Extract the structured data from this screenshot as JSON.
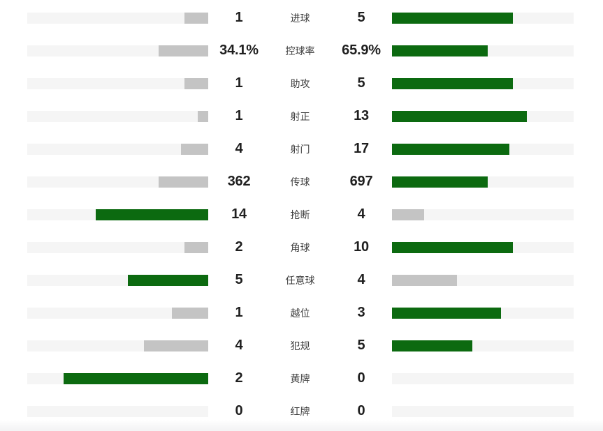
{
  "chart_data": {
    "type": "bar",
    "orientation": "horizontal",
    "layout": "mirrored-paired-comparison",
    "title": "",
    "legend": "none",
    "axis": "none",
    "grid": false,
    "bar_scale_note": "each fill width = 80% of track × value / (left value + right value); bars grow outward from center",
    "categories": [
      "进球",
      "控球率",
      "助攻",
      "射正",
      "射门",
      "传球",
      "抢断",
      "角球",
      "任意球",
      "越位",
      "犯规",
      "黄牌",
      "红牌"
    ],
    "series": [
      {
        "name": "left-team",
        "side": "left",
        "values": [
          1,
          34.1,
          1,
          1,
          4,
          362,
          14,
          2,
          5,
          1,
          4,
          2,
          0
        ]
      },
      {
        "name": "right-team",
        "side": "right",
        "values": [
          5,
          65.9,
          5,
          13,
          17,
          697,
          4,
          10,
          4,
          3,
          5,
          0,
          0
        ]
      }
    ],
    "rows": [
      {
        "label": "进球",
        "left": {
          "display": "1",
          "value": 1,
          "pct": 13.3,
          "color": "gray"
        },
        "right": {
          "display": "5",
          "value": 5,
          "pct": 66.7,
          "color": "green"
        }
      },
      {
        "label": "控球率",
        "left": {
          "display": "34.1%",
          "value": 34.1,
          "pct": 27.3,
          "color": "gray"
        },
        "right": {
          "display": "65.9%",
          "value": 65.9,
          "pct": 52.7,
          "color": "green"
        }
      },
      {
        "label": "助攻",
        "left": {
          "display": "1",
          "value": 1,
          "pct": 13.3,
          "color": "gray"
        },
        "right": {
          "display": "5",
          "value": 5,
          "pct": 66.7,
          "color": "green"
        }
      },
      {
        "label": "射正",
        "left": {
          "display": "1",
          "value": 1,
          "pct": 5.7,
          "color": "gray"
        },
        "right": {
          "display": "13",
          "value": 13,
          "pct": 74.3,
          "color": "green"
        }
      },
      {
        "label": "射门",
        "left": {
          "display": "4",
          "value": 4,
          "pct": 15.2,
          "color": "gray"
        },
        "right": {
          "display": "17",
          "value": 17,
          "pct": 64.8,
          "color": "green"
        }
      },
      {
        "label": "传球",
        "left": {
          "display": "362",
          "value": 362,
          "pct": 27.3,
          "color": "gray"
        },
        "right": {
          "display": "697",
          "value": 697,
          "pct": 52.7,
          "color": "green"
        }
      },
      {
        "label": "抢断",
        "left": {
          "display": "14",
          "value": 14,
          "pct": 62.2,
          "color": "green"
        },
        "right": {
          "display": "4",
          "value": 4,
          "pct": 17.8,
          "color": "gray"
        }
      },
      {
        "label": "角球",
        "left": {
          "display": "2",
          "value": 2,
          "pct": 13.3,
          "color": "gray"
        },
        "right": {
          "display": "10",
          "value": 10,
          "pct": 66.7,
          "color": "green"
        }
      },
      {
        "label": "任意球",
        "left": {
          "display": "5",
          "value": 5,
          "pct": 44.4,
          "color": "green"
        },
        "right": {
          "display": "4",
          "value": 4,
          "pct": 35.6,
          "color": "gray"
        }
      },
      {
        "label": "越位",
        "left": {
          "display": "1",
          "value": 1,
          "pct": 20.0,
          "color": "gray"
        },
        "right": {
          "display": "3",
          "value": 3,
          "pct": 60.0,
          "color": "green"
        }
      },
      {
        "label": "犯规",
        "left": {
          "display": "4",
          "value": 4,
          "pct": 35.6,
          "color": "gray"
        },
        "right": {
          "display": "5",
          "value": 5,
          "pct": 44.4,
          "color": "green"
        }
      },
      {
        "label": "黄牌",
        "left": {
          "display": "2",
          "value": 2,
          "pct": 80.0,
          "color": "green"
        },
        "right": {
          "display": "0",
          "value": 0,
          "pct": 0,
          "color": "none"
        }
      },
      {
        "label": "红牌",
        "left": {
          "display": "0",
          "value": 0,
          "pct": 0,
          "color": "none"
        },
        "right": {
          "display": "0",
          "value": 0,
          "pct": 0,
          "color": "none"
        }
      }
    ],
    "colors": {
      "leading_fill": "#0c6a10",
      "trailing_fill": "#c4c4c4",
      "track": "#f5f5f5",
      "value_text": "#1f1f1f",
      "label_text": "#3d3d3d",
      "background": "#ffffff",
      "footer_band": "#f4f4f5"
    }
  }
}
